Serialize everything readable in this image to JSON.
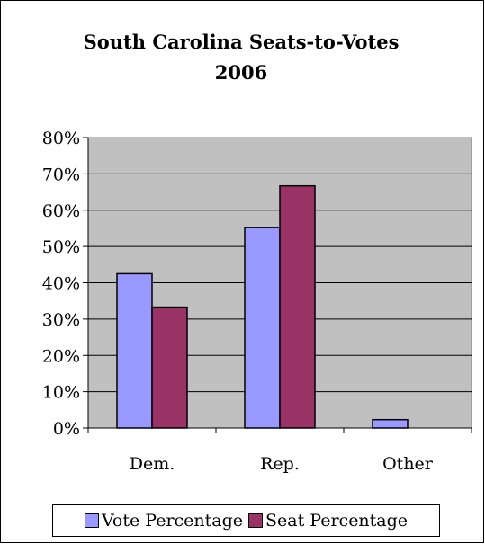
{
  "chart_data": {
    "type": "bar",
    "title_lines": [
      "South Carolina Seats-to-Votes",
      "2006"
    ],
    "categories": [
      "Dem.",
      "Rep.",
      "Other"
    ],
    "series": [
      {
        "name": "Vote Percentage",
        "color": "#9999FF",
        "values": [
          42.5,
          55.2,
          2.3
        ]
      },
      {
        "name": "Seat Percentage",
        "color": "#993366",
        "values": [
          33.3,
          66.7,
          0
        ]
      }
    ],
    "ylim": [
      0,
      80
    ],
    "yticks": [
      "0%",
      "10%",
      "20%",
      "30%",
      "40%",
      "50%",
      "60%",
      "70%",
      "80%"
    ],
    "plot_background": "#C0C0C0",
    "grid": true,
    "legend_position": "bottom"
  }
}
